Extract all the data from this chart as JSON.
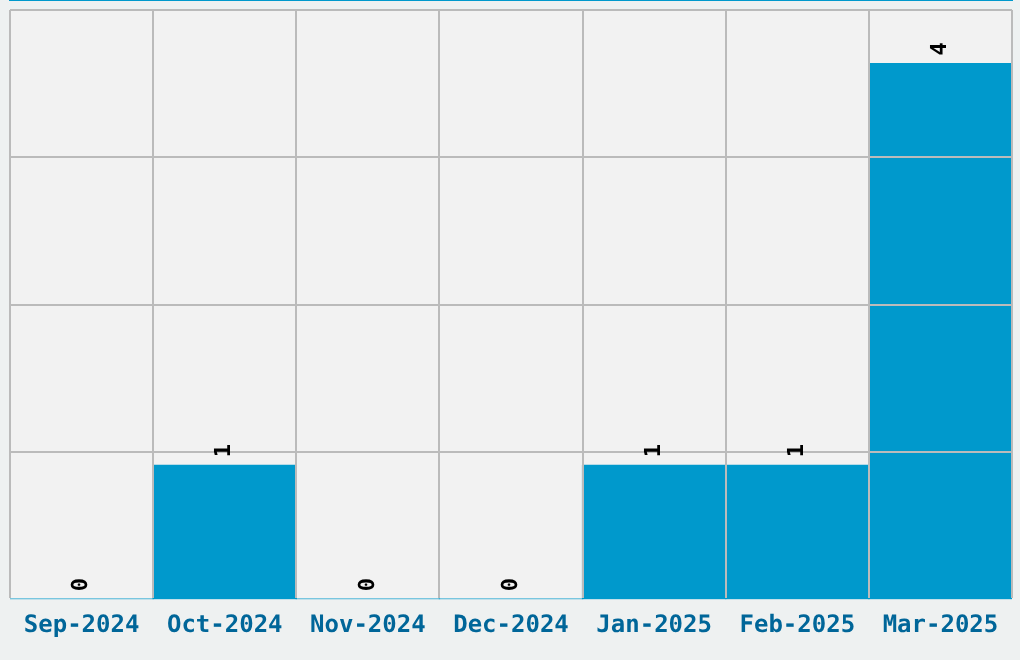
{
  "chart_data": {
    "type": "bar",
    "categories": [
      "Sep-2024",
      "Oct-2024",
      "Nov-2024",
      "Dec-2024",
      "Jan-2025",
      "Feb-2025",
      "Mar-2025"
    ],
    "values": [
      0,
      1,
      0,
      0,
      1,
      1,
      4
    ],
    "color": "#0099cc",
    "ylim": [
      0,
      4.4
    ],
    "yticks": [
      {
        "value": 1.1,
        "label": null
      },
      {
        "value": 2.2,
        "label": null
      },
      {
        "value": 3.3,
        "label": null
      },
      {
        "value": 4.4,
        "label": null
      }
    ],
    "tick_labels": "x",
    "grid": true,
    "data_labels": true
  }
}
